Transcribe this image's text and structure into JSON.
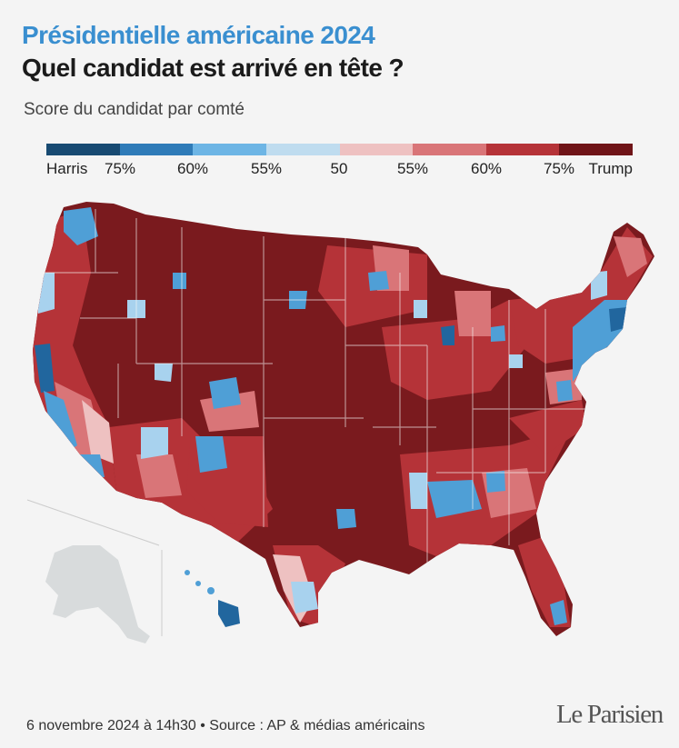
{
  "header": {
    "title_line1": "Présidentielle américaine 2024",
    "title_line2": "Quel candidat est arrivé en tête ?",
    "subtitle": "Score du candidat par comté"
  },
  "legend": {
    "labels": [
      "Harris",
      "75%",
      "60%",
      "55%",
      "50",
      "55%",
      "60%",
      "75%",
      "Trump"
    ],
    "swatches": [
      "#184a72",
      "#2f7bb8",
      "#6db5e5",
      "#bfdcef",
      "#eec1c1",
      "#d97578",
      "#b53338",
      "#6f1418"
    ]
  },
  "map": {
    "name": "Carte des comtés des États-Unis",
    "colors": {
      "trump_strong": "#7a1a1e",
      "trump_mid": "#b53338",
      "trump_lean": "#d97578",
      "harris_lean": "#a8d2ee",
      "harris_mid": "#4f9fd6",
      "harris_strong": "#21669e",
      "inactive": "#d8dbdc"
    }
  },
  "footer": {
    "source": "6 novembre 2024 à 14h30 • Source : AP & médias américains",
    "logo": "Le Parisien"
  }
}
